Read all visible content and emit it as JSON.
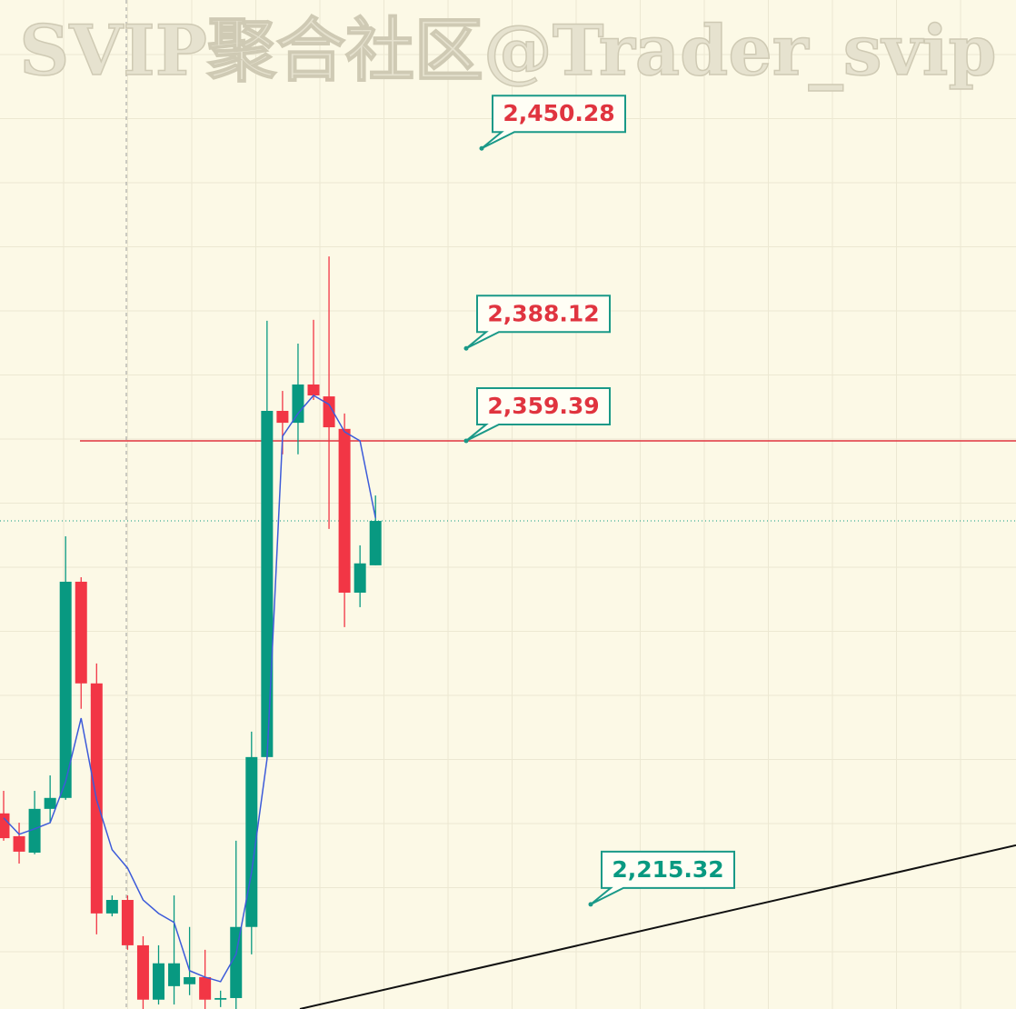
{
  "chart_data": {
    "type": "candlestick",
    "watermark": "SVIP聚合社区@Trader_svip",
    "ylim": [
      2182.8,
      2496.4
    ],
    "up_color": "#089981",
    "down_color": "#f23645",
    "candles": [
      {
        "open": 2243.6,
        "high": 2250.6,
        "low": 2235.1,
        "close": 2235.9
      },
      {
        "open": 2236.5,
        "high": 2240.7,
        "low": 2228.0,
        "close": 2231.7
      },
      {
        "open": 2231.4,
        "high": 2250.6,
        "low": 2230.9,
        "close": 2245.0
      },
      {
        "open": 2245.0,
        "high": 2255.4,
        "low": 2240.7,
        "close": 2248.4
      },
      {
        "open": 2248.4,
        "high": 2329.7,
        "low": 2247.8,
        "close": 2315.6
      },
      {
        "open": 2315.6,
        "high": 2317.0,
        "low": 2276.1,
        "close": 2284.0
      },
      {
        "open": 2284.0,
        "high": 2290.2,
        "low": 2206.0,
        "close": 2212.5
      },
      {
        "open": 2212.5,
        "high": 2218.1,
        "low": 2211.6,
        "close": 2216.7
      },
      {
        "open": 2216.7,
        "high": 2218.1,
        "low": 2201.2,
        "close": 2202.6
      },
      {
        "open": 2202.6,
        "high": 2205.4,
        "low": 2182.8,
        "close": 2185.7
      },
      {
        "open": 2185.7,
        "high": 2202.6,
        "low": 2184.2,
        "close": 2197.0
      },
      {
        "open": 2189.9,
        "high": 2218.1,
        "low": 2184.2,
        "close": 2197.0
      },
      {
        "open": 2190.5,
        "high": 2208.3,
        "low": 2187.1,
        "close": 2192.7
      },
      {
        "open": 2192.7,
        "high": 2201.2,
        "low": 2182.8,
        "close": 2185.7
      },
      {
        "open": 2185.7,
        "high": 2188.5,
        "low": 2183.4,
        "close": 2186.2
      },
      {
        "open": 2186.2,
        "high": 2235.1,
        "low": 2182.8,
        "close": 2208.3
      },
      {
        "open": 2208.3,
        "high": 2269.0,
        "low": 2199.8,
        "close": 2261.1
      },
      {
        "open": 2261.1,
        "high": 2396.7,
        "low": 2260.5,
        "close": 2368.7
      },
      {
        "open": 2368.7,
        "high": 2374.9,
        "low": 2355.2,
        "close": 2365.0
      },
      {
        "open": 2365.0,
        "high": 2389.6,
        "low": 2355.2,
        "close": 2376.9
      },
      {
        "open": 2376.9,
        "high": 2397.0,
        "low": 2372.1,
        "close": 2373.5
      },
      {
        "open": 2373.2,
        "high": 2416.7,
        "low": 2332.0,
        "close": 2363.6
      },
      {
        "open": 2363.1,
        "high": 2367.9,
        "low": 2301.5,
        "close": 2312.2
      },
      {
        "open": 2312.2,
        "high": 2326.9,
        "low": 2307.7,
        "close": 2321.3
      },
      {
        "open": 2320.7,
        "high": 2342.4,
        "low": 2320.7,
        "close": 2334.5
      }
    ],
    "ma": {
      "color": "#3d5bd9",
      "values": [
        2242.2,
        2237.1,
        2238.8,
        2240.7,
        2253.5,
        2273.2,
        2247.8,
        2232.3,
        2226.6,
        2216.7,
        2212.5,
        2209.7,
        2194.7,
        2192.7,
        2191.3,
        2199.8,
        2225.2,
        2260.5,
        2360.8,
        2367.9,
        2373.5,
        2370.7,
        2362.2,
        2359.4,
        2335.4
      ]
    },
    "price_line": {
      "value": 2334.5,
      "color": "#089981"
    },
    "level_line": {
      "value": 2359.39,
      "color": "#e0343f"
    },
    "trendline": {
      "start": 2182.8,
      "end": 2233.7,
      "color": "#111111"
    },
    "annotations": [
      {
        "label": "2,450.28",
        "value": 2450.28,
        "color": "#e0343f"
      },
      {
        "label": "2,388.12",
        "value": 2388.12,
        "color": "#e0343f"
      },
      {
        "label": "2,359.39",
        "value": 2359.39,
        "color": "#e0343f"
      },
      {
        "label": "2,215.32",
        "value": 2215.32,
        "color": "#089981"
      }
    ]
  }
}
